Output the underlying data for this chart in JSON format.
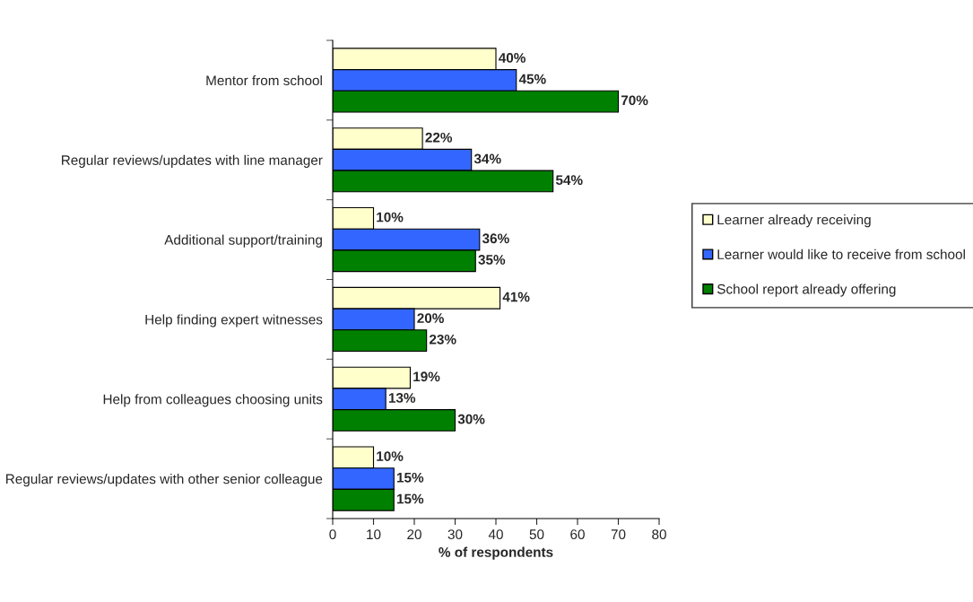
{
  "chart_data": {
    "type": "bar",
    "orientation": "horizontal",
    "xlabel": "% of respondents",
    "categories": [
      "Mentor from school",
      "Regular reviews/updates with line manager",
      "Additional support/training",
      "Help finding expert witnesses",
      "Help from colleagues choosing units",
      "Regular reviews/updates with other senior colleague"
    ],
    "series": [
      {
        "name": "Learner already receiving",
        "color": "#ffffcc",
        "values": [
          40,
          22,
          10,
          41,
          19,
          10
        ],
        "value_labels": [
          "40%",
          "22%",
          "10%",
          "41%",
          "19%",
          "10%"
        ]
      },
      {
        "name": "Learner would like to receive from school",
        "color": "#3366ff",
        "values": [
          45,
          34,
          36,
          20,
          13,
          15
        ],
        "value_labels": [
          "45%",
          "34%",
          "36%",
          "20%",
          "13%",
          "15%"
        ]
      },
      {
        "name": "School report already offering",
        "color": "#008000",
        "values": [
          70,
          54,
          35,
          23,
          30,
          15
        ],
        "value_labels": [
          "70%",
          "54%",
          "35%",
          "23%",
          "30%",
          "15%"
        ]
      }
    ],
    "xlim": [
      0,
      80
    ],
    "xticks": [
      0,
      10,
      20,
      30,
      40,
      50,
      60,
      70,
      80
    ],
    "grid": false,
    "legend": "right"
  }
}
